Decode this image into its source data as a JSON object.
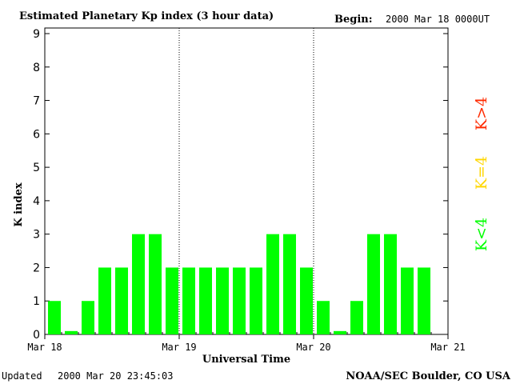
{
  "header": {
    "title": "Estimated Planetary Kp index (3 hour data)",
    "begin_label": "Begin:",
    "begin_value": "2000 Mar 18 0000UT"
  },
  "footer": {
    "updated_label": "Updated",
    "updated_value": "2000 Mar 20 23:45:03",
    "source": "NOAA/SEC Boulder, CO USA"
  },
  "legend": {
    "greater": "K>4",
    "equal": "K=4",
    "less": "K<4"
  },
  "colors": {
    "less_than_4": "#00ff00",
    "equal_4": "#ffd700",
    "greater_than_4": "#ff2a00",
    "axis": "#000000"
  },
  "chart_data": {
    "type": "bar",
    "title": "Estimated Planetary Kp index (3 hour data)",
    "xlabel": "Universal Time",
    "ylabel": "K index",
    "ylim": [
      0,
      9
    ],
    "yticks": [
      "0",
      "1",
      "2",
      "3",
      "4",
      "5",
      "6",
      "7",
      "8",
      "9"
    ],
    "xticks": [
      "Mar 18",
      "Mar 19",
      "Mar 20",
      "Mar 21"
    ],
    "day_separators": [
      "Mar 19",
      "Mar 20"
    ],
    "values": [
      1,
      0.1,
      1,
      2,
      2,
      3,
      3,
      2,
      2,
      2,
      2,
      2,
      2,
      3,
      3,
      2,
      1,
      0.1,
      1,
      3,
      3,
      2,
      2
    ],
    "grid": false
  }
}
